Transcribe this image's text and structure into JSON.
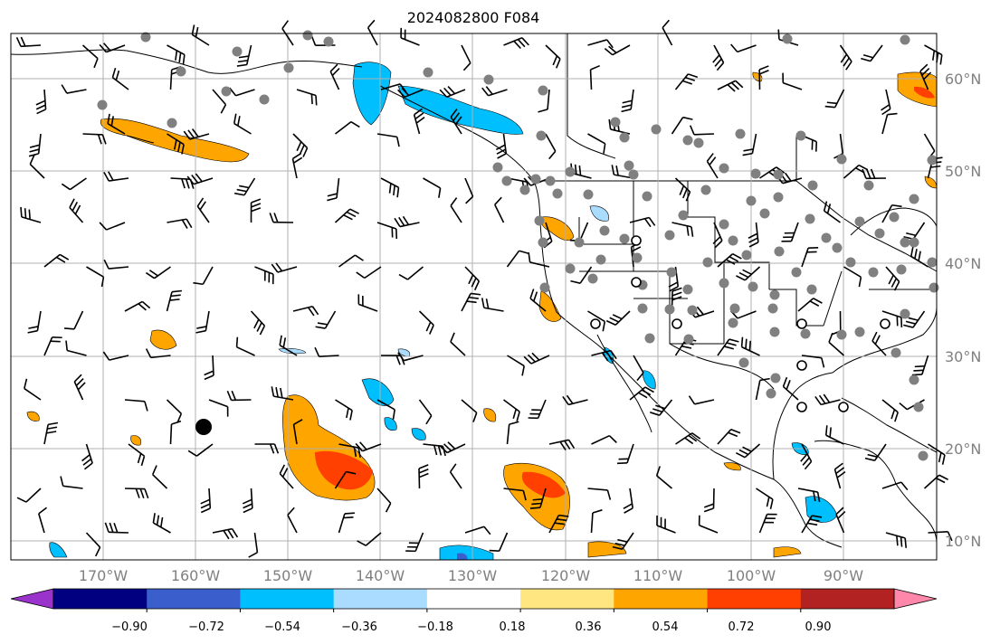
{
  "title": "2024082800 F084",
  "lat_labels": [
    "60°N",
    "50°N",
    "40°N",
    "30°N",
    "20°N",
    "10°N"
  ],
  "lon_labels": [
    "170°W",
    "160°W",
    "150°W",
    "140°W",
    "130°W",
    "120°W",
    "110°W",
    "100°W",
    "90°W"
  ],
  "colorbar": {
    "tick_labels": [
      "−0.90",
      "−0.72",
      "−0.54",
      "−0.36",
      "−0.18",
      "0.18",
      "0.36",
      "0.54",
      "0.72",
      "0.90"
    ],
    "colors": [
      "#9933cc",
      "#000080",
      "#3a5fcd",
      "#00bfff",
      "#aadcff",
      "#ffffff",
      "#ffe680",
      "#ffa500",
      "#ff4000",
      "#b22222",
      "#ff88aa"
    ]
  },
  "map_colors": {
    "land_outline": "#000000",
    "grid": "#b0b0b0",
    "station_dot": "#808080"
  }
}
